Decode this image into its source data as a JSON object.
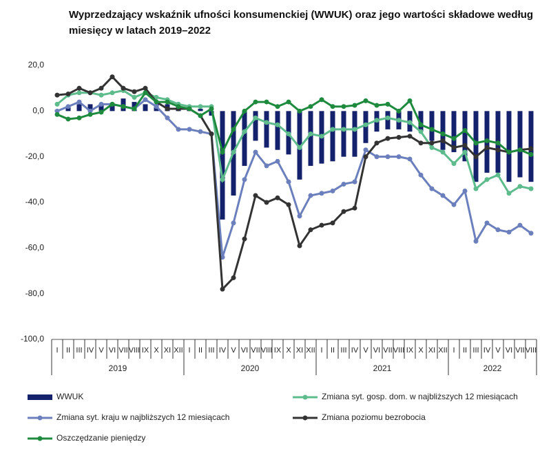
{
  "chart_data": {
    "type": "bar",
    "title": "Wyprzedzający wskaźnik ufności konsumenckiej (WWUK) oraz jego wartości składowe według miesięcy w latach 2019–2022",
    "categories": [
      "I",
      "II",
      "III",
      "IV",
      "V",
      "VI",
      "VII",
      "VIII",
      "IX",
      "X",
      "XI",
      "XII",
      "I",
      "II",
      "III",
      "IV",
      "V",
      "VI",
      "VII",
      "VIII",
      "IX",
      "X",
      "XI",
      "XII",
      "I",
      "II",
      "III",
      "IV",
      "V",
      "VI",
      "VII",
      "VIII",
      "IX",
      "X",
      "XI",
      "XII",
      "I",
      "II",
      "III",
      "IV",
      "V",
      "VI",
      "VII",
      "VIII"
    ],
    "years": [
      "2019",
      "2020",
      "2021",
      "2022"
    ],
    "ylim": [
      -100,
      20
    ],
    "yticks": [
      {
        "value": 20,
        "label": "20,0"
      },
      {
        "value": 0,
        "label": "0,0"
      },
      {
        "value": -20,
        "label": "-20,0"
      },
      {
        "value": -40,
        "label": "-40,0"
      },
      {
        "value": -60,
        "label": "-60,0"
      },
      {
        "value": -80,
        "label": "-80,0"
      },
      {
        "value": -100,
        "label": "-100,0"
      }
    ],
    "series": [
      {
        "name": "WWUK",
        "type": "bar",
        "color": "#14216b",
        "values": [
          0.5,
          2,
          3,
          3,
          3,
          3.5,
          5.5,
          4,
          3,
          3,
          3,
          2,
          1,
          1,
          -2,
          -47.5,
          -37,
          -24,
          -13,
          -16,
          -17,
          -19,
          -30,
          -24,
          -23,
          -22,
          -20,
          -20,
          -14,
          -9,
          -8,
          -8,
          -9,
          -9,
          -13,
          -17,
          -18,
          -22,
          -31,
          -27,
          -27,
          -31,
          -29,
          -31
        ]
      },
      {
        "name": "Zmiana syt. gosp. dom. w najbliższych 12 miesiącach",
        "type": "line",
        "color": "#5dbb8c",
        "values": [
          3,
          7,
          8,
          8,
          7,
          8,
          9,
          6,
          8,
          6,
          5,
          3,
          2,
          2,
          2,
          -30,
          -18,
          -9,
          -3,
          -5,
          -6,
          -10,
          -16,
          -10,
          -11,
          -8,
          -8,
          -8,
          -6,
          -4,
          -3,
          -4,
          -5,
          -9,
          -16,
          -18,
          -23,
          -18,
          -34,
          -30,
          -28,
          -36,
          -33,
          -34
        ]
      },
      {
        "name": "Zmiana syt. kraju w najbliższych 12 miesiącach",
        "type": "line",
        "color": "#6b7fbd",
        "values": [
          0,
          2,
          4,
          0,
          3,
          3,
          2,
          1,
          5,
          2,
          -3,
          -8,
          -8,
          -9,
          -10,
          -64,
          -49,
          -30,
          -18,
          -24,
          -22,
          -31,
          -46,
          -37,
          -36,
          -35,
          -32,
          -31,
          -17,
          -20,
          -20,
          -20,
          -21,
          -28,
          -34,
          -37,
          -41,
          -35,
          -57,
          -49,
          -52,
          -53,
          -50,
          -53.5
        ]
      },
      {
        "name": "Zmiana poziomu bezrobocia",
        "type": "line",
        "color": "#333333",
        "values": [
          7,
          7.5,
          10,
          8,
          10,
          15,
          10,
          8.5,
          10,
          4,
          1,
          1,
          1,
          -2,
          -10,
          -78,
          -73,
          -56,
          -37,
          -40,
          -38,
          -41,
          -59,
          -52,
          -50,
          -49,
          -44,
          -42.5,
          -20,
          -14,
          -12,
          -11.5,
          -11,
          -14,
          -14,
          -13,
          -16,
          -15,
          -20,
          -16,
          -17,
          -18,
          -17,
          -16.5
        ]
      },
      {
        "name": "Oszczędzanie pieniędzy",
        "type": "line",
        "color": "#1e8a3e",
        "values": [
          -1.5,
          -3.5,
          -3,
          -1.5,
          -0.5,
          3,
          2,
          1,
          8,
          4,
          4,
          2,
          1,
          -2,
          1,
          -18,
          -8,
          0,
          4,
          4,
          2,
          4,
          0,
          2,
          5,
          2,
          2,
          2.5,
          4.5,
          2.5,
          3,
          0,
          4.5,
          -6,
          -8,
          -10,
          -12,
          -8.5,
          -14,
          -13,
          -14,
          -18,
          -17,
          -19
        ]
      }
    ]
  }
}
